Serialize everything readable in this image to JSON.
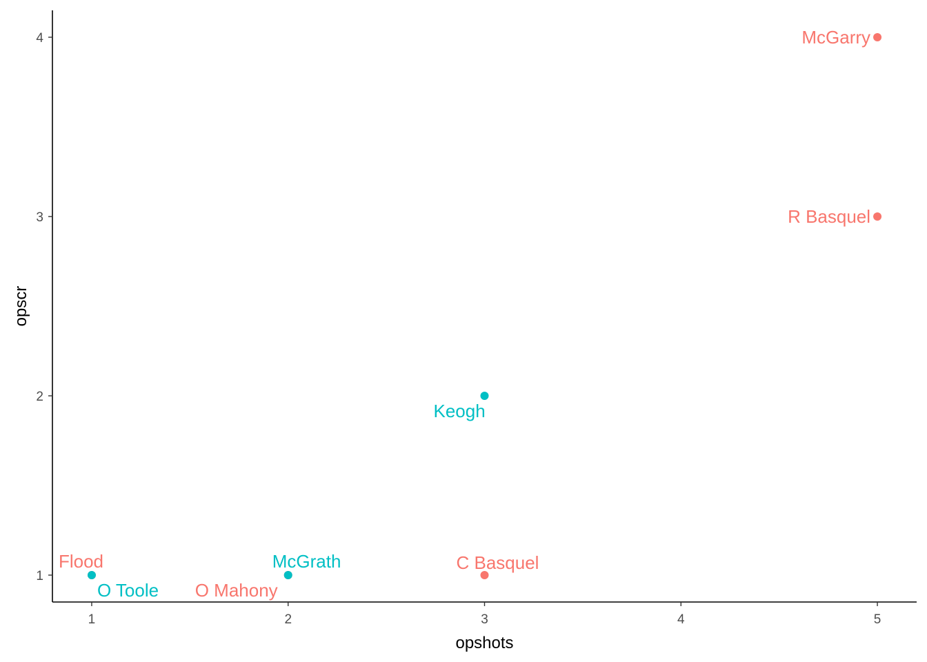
{
  "chart_data": {
    "type": "scatter",
    "title": "",
    "xlabel": "opshots",
    "ylabel": "opscr",
    "xlim": [
      0.8,
      5.2
    ],
    "ylim": [
      0.85,
      4.15
    ],
    "xticks": [
      1,
      2,
      3,
      4,
      5
    ],
    "yticks": [
      1,
      2,
      3,
      4
    ],
    "grid": false,
    "legend": "none",
    "colors": {
      "group_a": "#F8766D",
      "group_b": "#00BFC4"
    },
    "points": [
      {
        "label": "McGarry",
        "x": 5,
        "y": 4,
        "group": "group_a",
        "label_pos": "left"
      },
      {
        "label": "R Basquel",
        "x": 5,
        "y": 3,
        "group": "group_a",
        "label_pos": "left"
      },
      {
        "label": "Keogh",
        "x": 3,
        "y": 2,
        "group": "group_b",
        "label_pos": "below-left"
      },
      {
        "label": "Flood",
        "x": 1,
        "y": 1,
        "group": "group_a",
        "label_pos": "above-left"
      },
      {
        "label": "O Toole",
        "x": 1,
        "y": 1,
        "group": "group_b",
        "label_pos": "below-right"
      },
      {
        "label": "O Mahony",
        "x": 2,
        "y": 1,
        "group": "group_a",
        "label_pos": "below-left"
      },
      {
        "label": "McGrath",
        "x": 2,
        "y": 1,
        "group": "group_b",
        "label_pos": "above-right"
      },
      {
        "label": "C Basquel",
        "x": 3,
        "y": 1,
        "group": "group_a",
        "label_pos": "above-right"
      }
    ]
  }
}
